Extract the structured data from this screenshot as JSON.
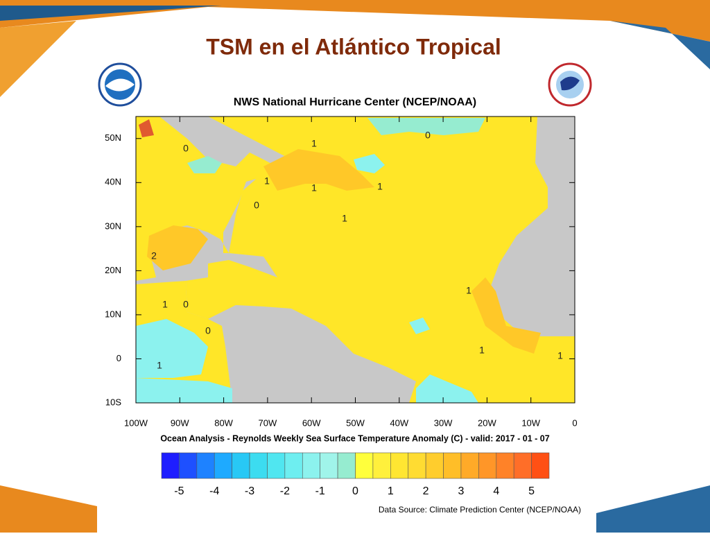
{
  "title": "TSM en el Atlántico Tropical",
  "map": {
    "title": "NWS National Hurricane Center (NCEP/NOAA)",
    "caption": "Ocean Analysis - Reynolds Weekly Sea Surface Temperature Anomaly (C) - valid: 2017 - 01 - 07",
    "xlim": [
      -100,
      0
    ],
    "ylim": [
      -10,
      55
    ],
    "xticks": [
      {
        "value": -100,
        "label": "100W"
      },
      {
        "value": -90,
        "label": "90W"
      },
      {
        "value": -80,
        "label": "80W"
      },
      {
        "value": -70,
        "label": "70W"
      },
      {
        "value": -60,
        "label": "60W"
      },
      {
        "value": -50,
        "label": "50W"
      },
      {
        "value": -40,
        "label": "40W"
      },
      {
        "value": -30,
        "label": "30W"
      },
      {
        "value": -20,
        "label": "20W"
      },
      {
        "value": -10,
        "label": "10W"
      },
      0
    ],
    "yticks": [
      {
        "value": 50,
        "label": "50N"
      },
      {
        "value": 40,
        "label": "40N"
      },
      {
        "value": 30,
        "label": "30N"
      },
      {
        "value": 20,
        "label": "20N"
      },
      {
        "value": 10,
        "label": "10N"
      },
      0,
      {
        "value": -10,
        "label": "10S"
      }
    ],
    "contour_labels": [
      "0",
      "1",
      "1",
      "0",
      "1",
      "1",
      "1",
      "0",
      "2",
      "1",
      "0",
      "0",
      "1",
      "1",
      "1",
      "1"
    ]
  },
  "colorbar": {
    "lim": [
      -5.5,
      5.5
    ],
    "ticks": [
      -5,
      -4,
      -3,
      -2,
      -1,
      0,
      1,
      2,
      3,
      4,
      5
    ],
    "colors": [
      "#1e1eff",
      "#1e50ff",
      "#1e82ff",
      "#1eaaff",
      "#28c8f5",
      "#3cdcf0",
      "#50e6f0",
      "#6eeef0",
      "#8cf2ee",
      "#a0f4ea",
      "#96ecd0",
      "#ffff3c",
      "#fff03c",
      "#ffe632",
      "#ffdc32",
      "#ffcd2d",
      "#ffbe28",
      "#ffaa28",
      "#ff9628",
      "#ff8228",
      "#ff6e28",
      "#ff5014"
    ]
  },
  "source": "Data Source: Climate Prediction Center (NCEP/NOAA)"
}
